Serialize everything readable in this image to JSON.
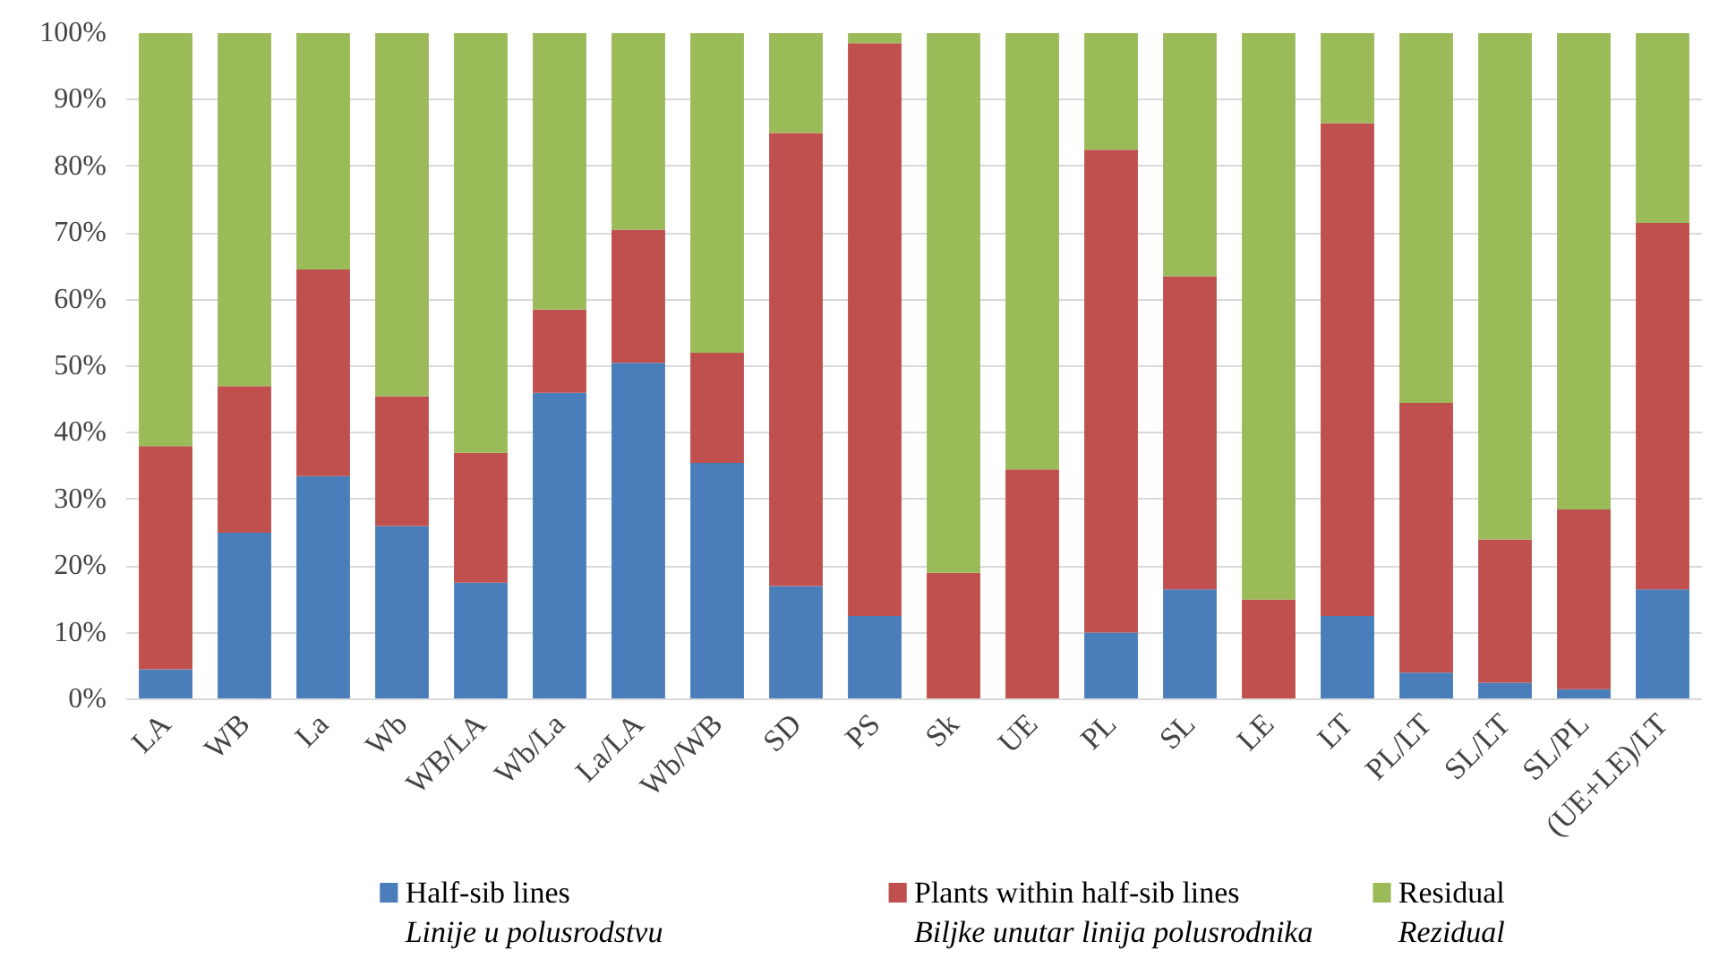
{
  "chart_data": {
    "type": "bar",
    "stacked": true,
    "categories": [
      "LA",
      "WB",
      "La",
      "Wb",
      "WB/LA",
      "Wb/La",
      "La/LA",
      "Wb/WB",
      "SD",
      "PS",
      "Sk",
      "UE",
      "PL",
      "SL",
      "LE",
      "LT",
      "PL/LT",
      "SL/LT",
      "SL/PL",
      "(UE+LE)/LT"
    ],
    "series": [
      {
        "name": "Half-sib lines\nLinije u polusrodstvu",
        "color": "#4a7ebb",
        "values": [
          4.5,
          25,
          33.5,
          26,
          17.5,
          46,
          50.5,
          35.5,
          17,
          12.5,
          0,
          0,
          10,
          16.5,
          0,
          12.5,
          4,
          2.5,
          1.5,
          16.5
        ]
      },
      {
        "name": "Plants within half-sib lines\nBiljke unutar linija polusrodnika",
        "color": "#c0504d",
        "values": [
          33.5,
          22,
          31,
          19.5,
          19.5,
          12.5,
          20,
          16.5,
          68,
          86,
          19,
          34.5,
          72.5,
          47,
          15,
          74,
          40.5,
          21.5,
          27,
          55
        ]
      },
      {
        "name": "Residual\nRezidual",
        "color": "#9bbb59",
        "values": [
          62,
          53,
          35.5,
          54.5,
          63,
          41.5,
          29.5,
          48,
          15,
          1.5,
          81,
          65.5,
          17.5,
          36.5,
          85,
          13.5,
          55.5,
          76,
          71.5,
          28.5
        ]
      }
    ],
    "ylim": [
      0,
      100
    ],
    "yticks": [
      {
        "value": 0,
        "label": "0%"
      },
      {
        "value": 10,
        "label": "10%"
      },
      {
        "value": 20,
        "label": "20%"
      },
      {
        "value": 30,
        "label": "30%"
      },
      {
        "value": 40,
        "label": "40%"
      },
      {
        "value": 50,
        "label": "50%"
      },
      {
        "value": 60,
        "label": "60%"
      },
      {
        "value": 70,
        "label": "70%"
      },
      {
        "value": 80,
        "label": "80%"
      },
      {
        "value": 90,
        "label": "90%"
      },
      {
        "value": 100,
        "label": "100%"
      }
    ],
    "grid": "y",
    "legend": "bottom"
  }
}
